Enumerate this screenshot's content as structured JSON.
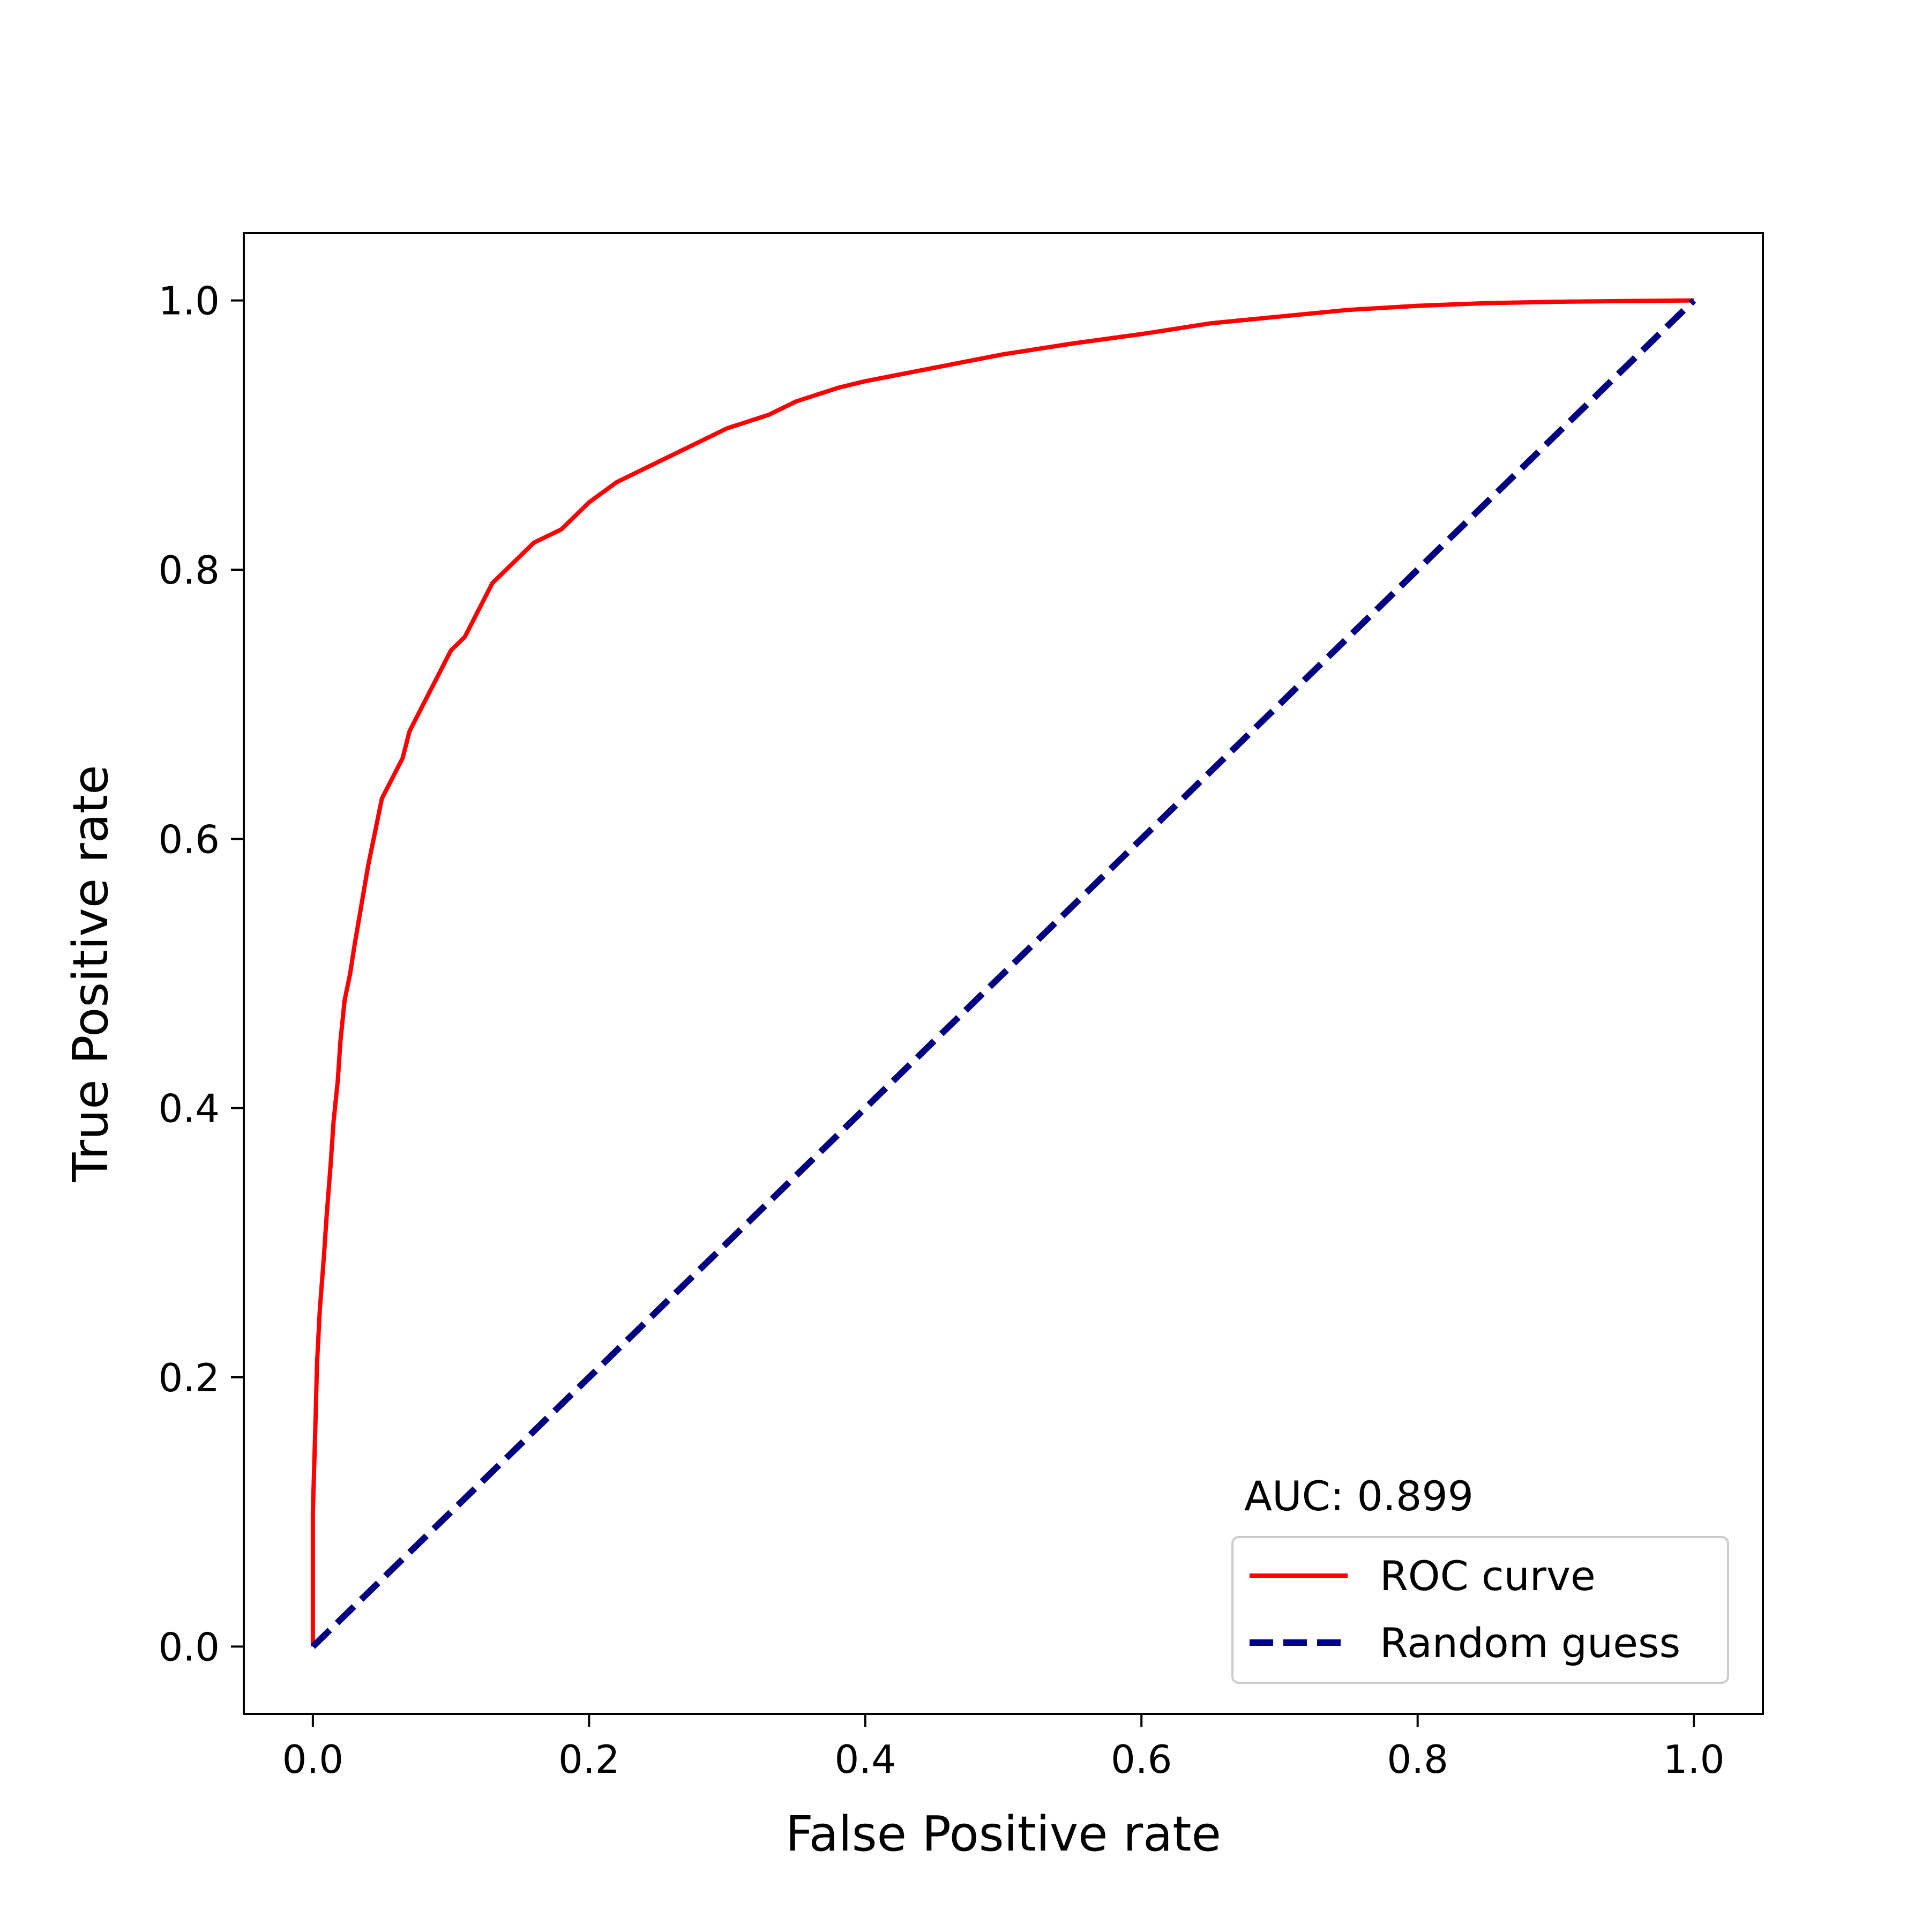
{
  "chart_data": {
    "type": "line",
    "title": "",
    "xlabel": "False Positive rate",
    "ylabel": "True Positive rate",
    "xlim": [
      -0.05,
      1.05
    ],
    "ylim": [
      -0.05,
      1.05
    ],
    "xticks": [
      0.0,
      0.2,
      0.4,
      0.6,
      0.8,
      1.0
    ],
    "yticks": [
      0.0,
      0.2,
      0.4,
      0.6,
      0.8,
      1.0
    ],
    "xtick_labels": [
      "0.0",
      "0.2",
      "0.4",
      "0.6",
      "0.8",
      "1.0"
    ],
    "ytick_labels": [
      "0.0",
      "0.2",
      "0.4",
      "0.6",
      "0.8",
      "1.0"
    ],
    "grid": false,
    "legend_position": "lower-right",
    "annotation": "AUC: 0.899",
    "series": [
      {
        "name": "ROC curve",
        "color": "#ff0000",
        "style": "solid",
        "x": [
          0.0,
          0.0,
          0.002,
          0.003,
          0.005,
          0.008,
          0.01,
          0.013,
          0.015,
          0.018,
          0.02,
          0.023,
          0.027,
          0.03,
          0.035,
          0.04,
          0.05,
          0.06,
          0.065,
          0.07,
          0.08,
          0.085,
          0.09,
          0.1,
          0.11,
          0.12,
          0.13,
          0.14,
          0.15,
          0.16,
          0.17,
          0.18,
          0.2,
          0.22,
          0.25,
          0.28,
          0.3,
          0.33,
          0.35,
          0.38,
          0.4,
          0.45,
          0.5,
          0.55,
          0.6,
          0.65,
          0.7,
          0.75,
          0.8,
          0.85,
          0.9,
          0.95,
          1.0
        ],
        "y": [
          0.0,
          0.1,
          0.17,
          0.21,
          0.25,
          0.29,
          0.32,
          0.36,
          0.39,
          0.42,
          0.45,
          0.48,
          0.5,
          0.52,
          0.55,
          0.58,
          0.63,
          0.65,
          0.66,
          0.68,
          0.7,
          0.71,
          0.72,
          0.74,
          0.75,
          0.77,
          0.79,
          0.8,
          0.81,
          0.82,
          0.825,
          0.83,
          0.85,
          0.865,
          0.88,
          0.895,
          0.905,
          0.915,
          0.925,
          0.935,
          0.94,
          0.95,
          0.96,
          0.968,
          0.975,
          0.983,
          0.988,
          0.993,
          0.996,
          0.998,
          0.999,
          0.9995,
          1.0
        ]
      },
      {
        "name": "Random guess",
        "color": "#000080",
        "style": "dashed",
        "x": [
          0.0,
          1.0
        ],
        "y": [
          0.0,
          1.0
        ]
      }
    ]
  }
}
